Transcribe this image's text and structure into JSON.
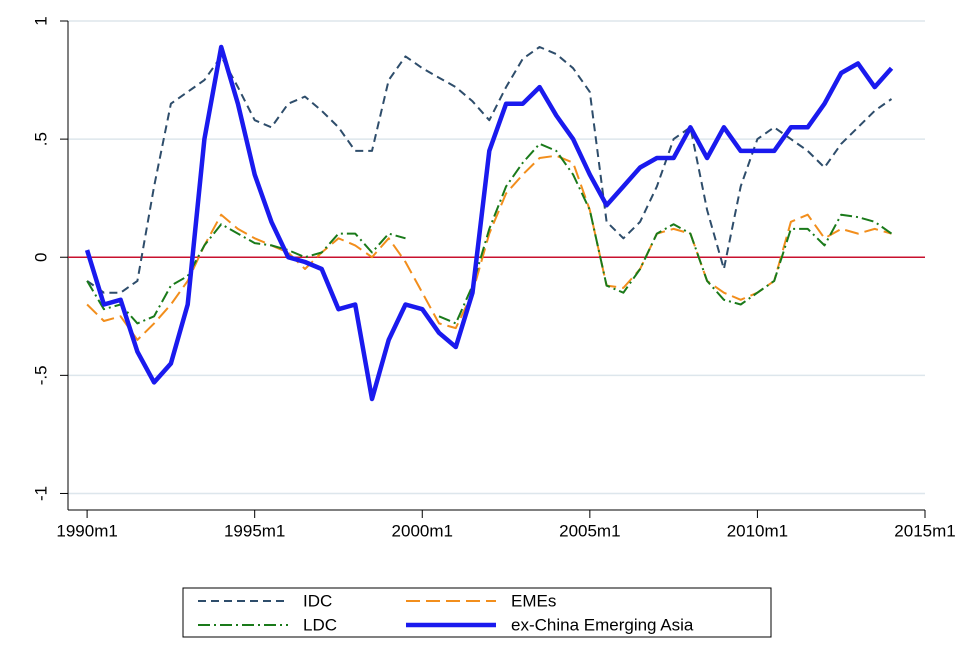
{
  "chart_data": {
    "type": "line",
    "x": [
      1990,
      1990.5,
      1991,
      1991.5,
      1992,
      1992.5,
      1993,
      1993.5,
      1994,
      1994.5,
      1995,
      1995.5,
      1996,
      1996.5,
      1997,
      1997.5,
      1998,
      1998.5,
      1999,
      1999.5,
      2000,
      2000.5,
      2001,
      2001.5,
      2002,
      2002.5,
      2003,
      2003.5,
      2004,
      2004.5,
      2005,
      2005.5,
      2006,
      2006.5,
      2007,
      2007.5,
      2008,
      2008.5,
      2009,
      2009.5,
      2010,
      2010.5,
      2011,
      2011.5,
      2012,
      2012.5,
      2013,
      2013.5,
      2014
    ],
    "series": [
      {
        "name": "IDC",
        "color": "#2e4d6b",
        "dash": "8,5",
        "width": 2,
        "values": [
          -0.1,
          -0.15,
          -0.15,
          -0.1,
          0.3,
          0.65,
          0.7,
          0.75,
          0.85,
          0.72,
          0.58,
          0.55,
          0.65,
          0.68,
          0.62,
          0.55,
          0.45,
          0.45,
          0.75,
          0.85,
          0.8,
          0.76,
          0.72,
          0.66,
          0.58,
          0.72,
          0.84,
          0.89,
          0.86,
          0.8,
          0.7,
          0.15,
          0.08,
          0.15,
          0.3,
          0.5,
          0.55,
          0.2,
          -0.05,
          0.3,
          0.5,
          0.55,
          0.5,
          0.45,
          0.38,
          0.48,
          0.55,
          0.62,
          0.67
        ]
      },
      {
        "name": "EMEs",
        "color": "#f28e1c",
        "dash": "14,6",
        "width": 2,
        "values": [
          -0.2,
          -0.27,
          -0.25,
          -0.35,
          -0.28,
          -0.2,
          -0.1,
          0.05,
          0.18,
          0.12,
          0.08,
          0.05,
          0.02,
          -0.05,
          0.02,
          0.08,
          0.05,
          0.0,
          0.08,
          -0.02,
          -0.15,
          -0.28,
          -0.3,
          -0.15,
          0.1,
          0.27,
          0.35,
          0.42,
          0.43,
          0.4,
          0.2,
          -0.12,
          -0.13,
          -0.05,
          0.1,
          0.12,
          0.1,
          -0.1,
          -0.15,
          -0.18,
          -0.15,
          -0.1,
          0.15,
          0.18,
          0.08,
          0.12,
          0.1,
          0.12,
          0.1
        ]
      },
      {
        "name": "LDC",
        "color": "#1a7a1a",
        "dash": "12,4,2,4",
        "width": 2,
        "values": [
          -0.1,
          -0.22,
          -0.2,
          -0.28,
          -0.25,
          -0.12,
          -0.08,
          0.05,
          0.14,
          0.1,
          0.06,
          0.05,
          0.03,
          0.0,
          0.02,
          0.1,
          0.1,
          0.02,
          0.1,
          0.08,
          null,
          -0.25,
          -0.28,
          -0.12,
          0.12,
          0.3,
          0.4,
          0.48,
          0.45,
          0.35,
          0.2,
          -0.12,
          -0.15,
          -0.05,
          0.1,
          0.14,
          0.1,
          -0.1,
          -0.18,
          -0.2,
          -0.15,
          -0.1,
          0.12,
          0.12,
          0.05,
          0.18,
          0.17,
          0.15,
          0.1
        ]
      },
      {
        "name": "ex-China Emerging Asia",
        "color": "#1a1aee",
        "dash": "none",
        "width": 4.5,
        "values": [
          0.03,
          -0.2,
          -0.18,
          -0.4,
          -0.53,
          -0.45,
          -0.2,
          0.5,
          0.89,
          0.65,
          0.35,
          0.15,
          0.0,
          -0.02,
          -0.05,
          -0.22,
          -0.2,
          -0.6,
          -0.35,
          -0.2,
          -0.22,
          -0.32,
          -0.38,
          -0.15,
          0.45,
          0.65,
          0.65,
          0.72,
          0.6,
          0.5,
          0.35,
          0.22,
          0.3,
          0.38,
          0.42,
          0.42,
          0.55,
          0.42,
          0.55,
          0.45,
          0.45,
          0.45,
          0.55,
          0.55,
          0.65,
          0.78,
          0.82,
          0.72,
          0.8
        ]
      }
    ],
    "xlim": [
      1989.43,
      2015
    ],
    "xticks": [
      {
        "value": 1990,
        "label": "1990m1"
      },
      {
        "value": 1995,
        "label": "1995m1"
      },
      {
        "value": 2000,
        "label": "2000m1"
      },
      {
        "value": 2005,
        "label": "2005m1"
      },
      {
        "value": 2010,
        "label": "2010m1"
      },
      {
        "value": 2015,
        "label": "2015m1"
      }
    ],
    "ylim": [
      -1.07,
      1
    ],
    "yticks": [
      -1,
      {
        "value": -0.5,
        "label": "-.5"
      },
      0,
      {
        "value": 0.5,
        "label": ".5"
      },
      1
    ],
    "grid": true,
    "grid_color": "#dde6ec",
    "yline": 0,
    "yline_color": "#c8102e",
    "legend": "bottom"
  }
}
